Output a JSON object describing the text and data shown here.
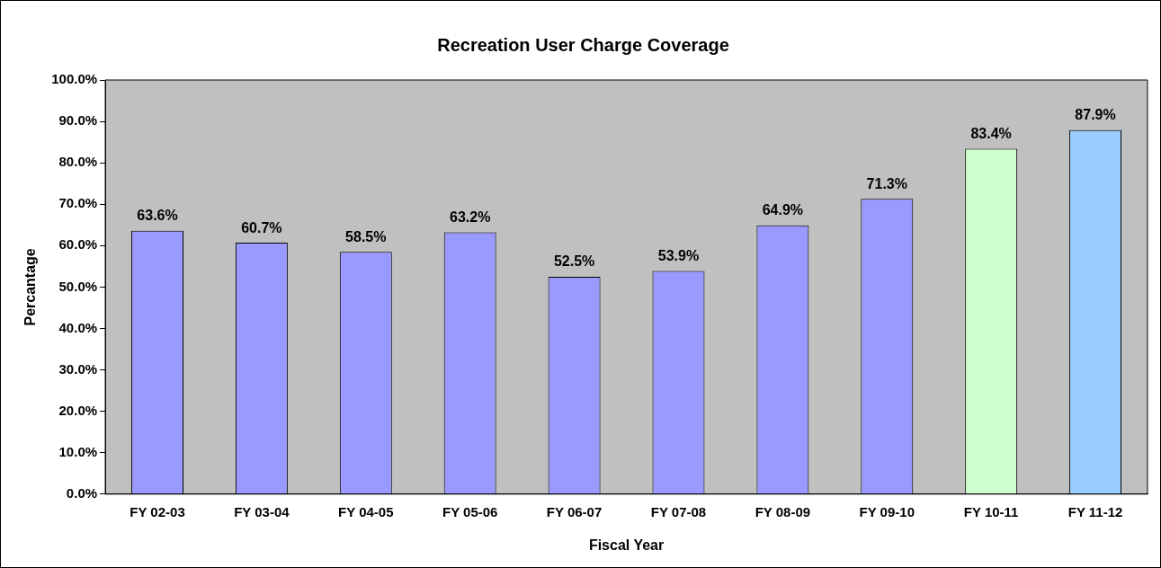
{
  "chart_data": {
    "type": "bar",
    "title": "Recreation User Charge Coverage",
    "xlabel": "Fiscal Year",
    "ylabel": "Percantage",
    "categories": [
      "FY 02-03",
      "FY 03-04",
      "FY 04-05",
      "FY 05-06",
      "FY 06-07",
      "FY 07-08",
      "FY 08-09",
      "FY 09-10",
      "FY 10-11",
      "FY 11-12"
    ],
    "values": [
      63.6,
      60.7,
      58.5,
      63.2,
      52.5,
      53.9,
      64.9,
      71.3,
      83.4,
      87.9
    ],
    "colors": [
      "#9999ff",
      "#9999ff",
      "#9999ff",
      "#9999ff",
      "#9999ff",
      "#9999ff",
      "#9999ff",
      "#9999ff",
      "#ccffcc",
      "#99ccff"
    ],
    "value_labels": [
      "63.6%",
      "60.7%",
      "58.5%",
      "63.2%",
      "52.5%",
      "53.9%",
      "64.9%",
      "71.3%",
      "83.4%",
      "87.9%"
    ],
    "ylim": [
      0,
      100
    ],
    "yticks": [
      {
        "value": 0,
        "label": "0.0%"
      },
      {
        "value": 10,
        "label": "10.0%"
      },
      {
        "value": 20,
        "label": "20.0%"
      },
      {
        "value": 30,
        "label": "30.0%"
      },
      {
        "value": 40,
        "label": "40.0%"
      },
      {
        "value": 50,
        "label": "50.0%"
      },
      {
        "value": 60,
        "label": "60.0%"
      },
      {
        "value": 70,
        "label": "70.0%"
      },
      {
        "value": 80,
        "label": "80.0%"
      },
      {
        "value": 90,
        "label": "90.0%"
      },
      {
        "value": 100,
        "label": "100.0%"
      }
    ],
    "grid": false,
    "legend": false
  }
}
